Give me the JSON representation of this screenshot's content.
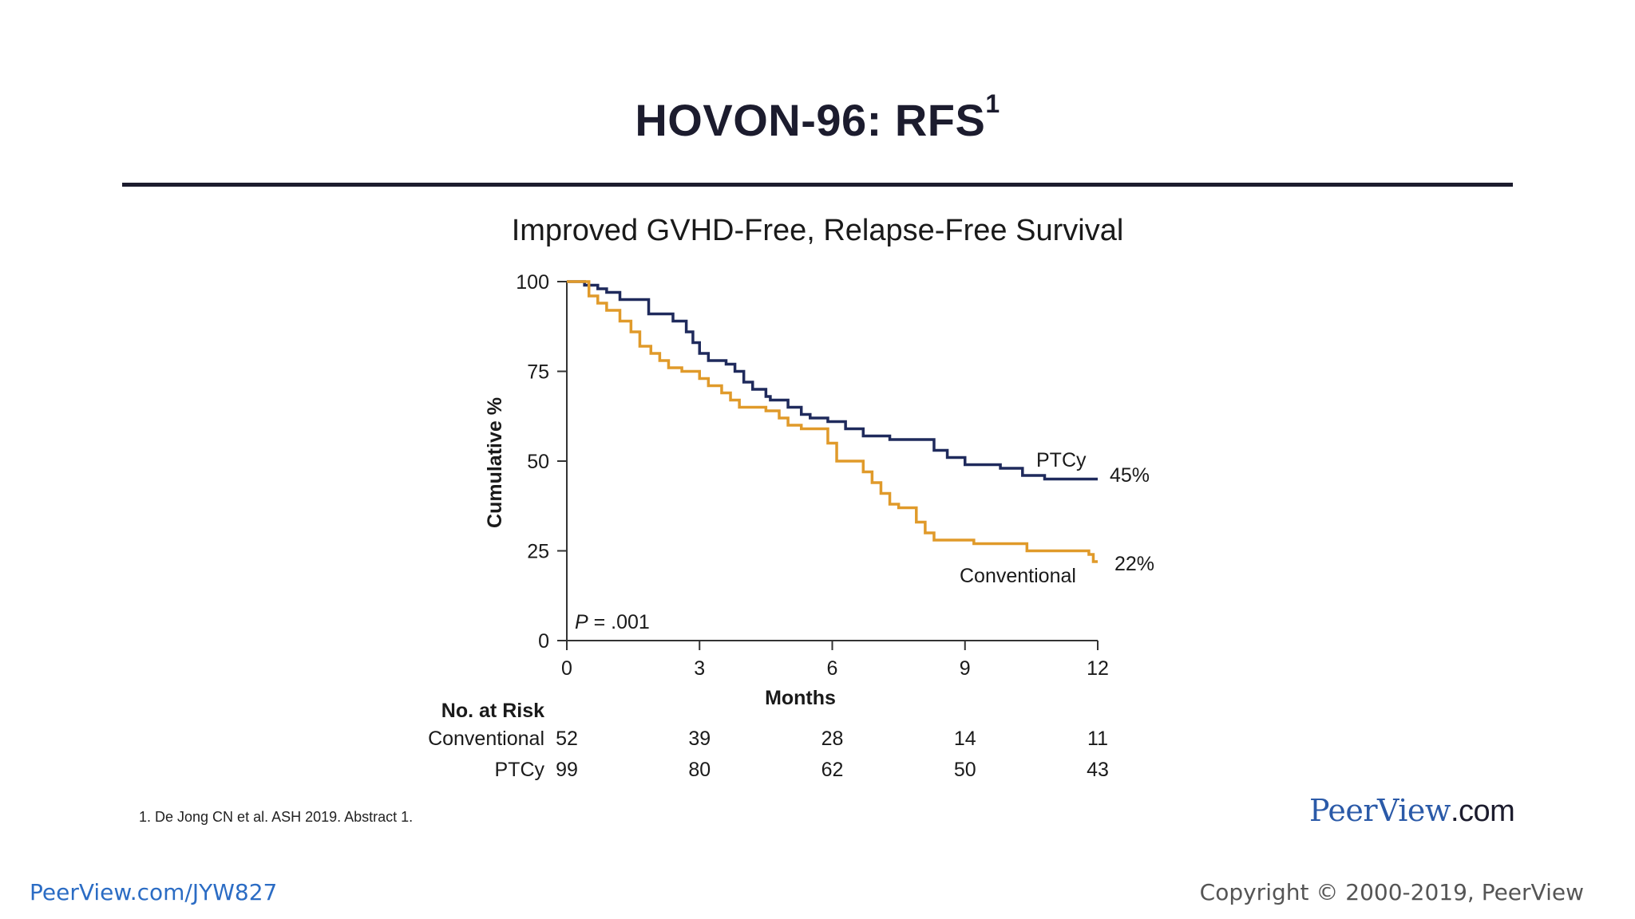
{
  "slide": {
    "title": "HOVON-96: RFS",
    "title_superscript": "1",
    "footnote": "1. De Jong CN et al. ASH 2019. Abstract 1.",
    "brand_name": "PeerView",
    "brand_suffix": ".com",
    "footer_link": "PeerView.com/JYW827",
    "copyright": "Copyright © 2000-2019, PeerView"
  },
  "chart_data": {
    "type": "line",
    "title": "Improved GVHD-Free, Relapse-Free Survival",
    "xlabel": "Months",
    "ylabel": "Cumulative %",
    "xlim": [
      0,
      12
    ],
    "ylim": [
      0,
      100
    ],
    "x_ticks": [
      "0",
      "3",
      "6",
      "9",
      "12"
    ],
    "y_ticks": [
      "0",
      "25",
      "50",
      "75",
      "100"
    ],
    "p_value_label": "P",
    "p_value_text": " = .001",
    "series": [
      {
        "name": "PTCy",
        "color": "#1f2a5c",
        "end_label": "45%",
        "x": [
          0,
          0.4,
          0.7,
          0.9,
          1.2,
          1.85,
          2.4,
          2.7,
          2.85,
          3.0,
          3.2,
          3.6,
          3.8,
          4.0,
          4.2,
          4.5,
          4.6,
          5.0,
          5.3,
          5.5,
          5.9,
          6.3,
          6.7,
          7.3,
          8.3,
          8.6,
          9.0,
          9.8,
          10.3,
          10.8,
          11.2,
          12.0
        ],
        "y": [
          100,
          99,
          98,
          97,
          95,
          91,
          89,
          86,
          83,
          80,
          78,
          77,
          75,
          72,
          70,
          68,
          67,
          65,
          63,
          62,
          61,
          59,
          57,
          56,
          53,
          51,
          49,
          48,
          46,
          45,
          45,
          45
        ]
      },
      {
        "name": "Conventional",
        "color": "#e09a2a",
        "end_label": "22%",
        "x": [
          0,
          0.5,
          0.7,
          0.9,
          1.2,
          1.45,
          1.65,
          1.9,
          2.1,
          2.3,
          2.6,
          3.0,
          3.2,
          3.5,
          3.7,
          3.9,
          4.5,
          4.8,
          5.0,
          5.3,
          5.9,
          6.1,
          6.7,
          6.9,
          7.1,
          7.3,
          7.5,
          7.9,
          8.1,
          8.3,
          9.2,
          10.4,
          11.8,
          11.9,
          12.0
        ],
        "y": [
          100,
          96,
          94,
          92,
          89,
          86,
          82,
          80,
          78,
          76,
          75,
          73,
          71,
          69,
          67,
          65,
          64,
          62,
          60,
          59,
          55,
          50,
          47,
          44,
          41,
          38,
          37,
          33,
          30,
          28,
          27,
          25,
          24,
          22,
          22
        ]
      }
    ],
    "risk_table": {
      "heading": "No. at Risk",
      "timepoints": [
        0,
        3,
        6,
        9,
        12
      ],
      "rows": [
        {
          "label": "Conventional",
          "values": [
            "52",
            "39",
            "28",
            "14",
            "11"
          ]
        },
        {
          "label": "PTCy",
          "values": [
            "99",
            "80",
            "62",
            "50",
            "43"
          ]
        }
      ]
    }
  }
}
